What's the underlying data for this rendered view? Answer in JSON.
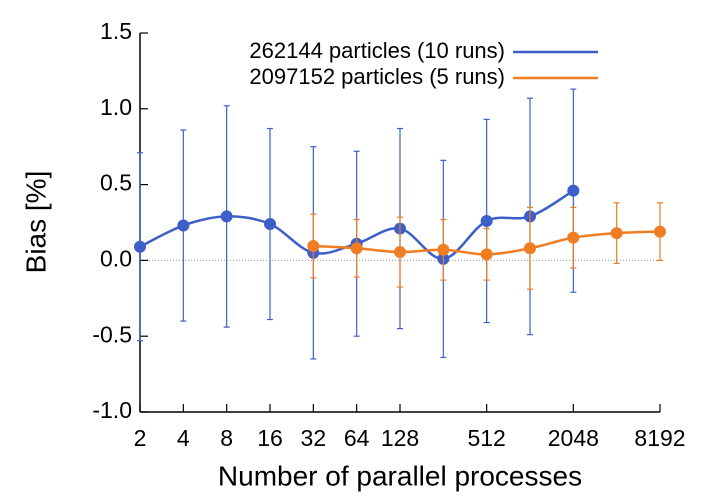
{
  "chart_data": {
    "type": "line",
    "xscale": "log2",
    "x_label": "Number of parallel processes",
    "y_label": "Bias [%]",
    "xlim": [
      2,
      8192
    ],
    "xticks": [
      2,
      4,
      8,
      16,
      32,
      64,
      128,
      512,
      2048,
      8192
    ],
    "ylim": [
      -1,
      1.5
    ],
    "yticks": [
      {
        "value": -1,
        "label": "-1.0"
      },
      -0.5,
      {
        "value": 0,
        "label": "0.0"
      },
      0.5,
      {
        "value": 1,
        "label": "1.0"
      },
      1.5
    ],
    "legend": "top",
    "series": [
      {
        "name": "262144 particles (10 runs)",
        "color": "#3d5fc9",
        "x": [
          2,
          4,
          8,
          16,
          32,
          64,
          128,
          256,
          512,
          1024,
          2048
        ],
        "values": [
          0.09,
          0.23,
          0.29,
          0.24,
          0.05,
          0.11,
          0.21,
          0.01,
          0.26,
          0.29,
          0.46
        ],
        "errors": [
          0.62,
          0.63,
          0.73,
          0.63,
          0.7,
          0.61,
          0.66,
          0.65,
          0.67,
          0.78,
          0.67
        ]
      },
      {
        "name": "2097152 particles (5 runs)",
        "color": "#f07d22",
        "x": [
          32,
          64,
          128,
          256,
          512,
          1024,
          2048,
          4096,
          8192
        ],
        "values": [
          0.095,
          0.08,
          0.055,
          0.07,
          0.04,
          0.08,
          0.15,
          0.18,
          0.19
        ],
        "errors": [
          0.21,
          0.19,
          0.23,
          0.2,
          0.17,
          0.27,
          0.2,
          0.2,
          0.19
        ]
      }
    ]
  }
}
